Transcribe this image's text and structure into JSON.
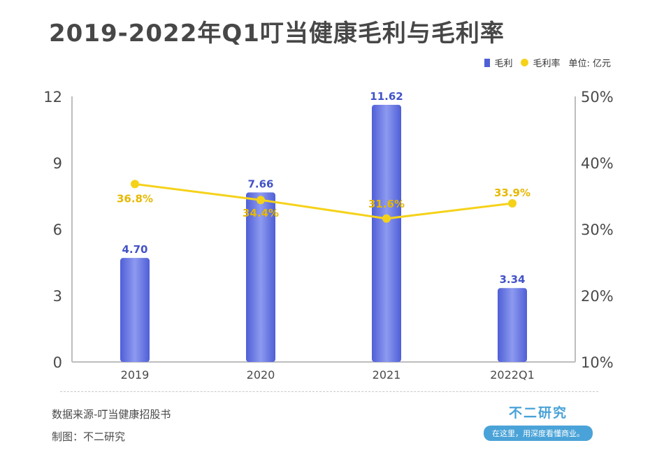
{
  "title": "2019-2022年Q1叮当健康毛利与毛利率",
  "legend": {
    "bar_label": "毛利",
    "line_label": "毛利率",
    "unit": "单位: 亿元"
  },
  "colors": {
    "bar": "#4f5fd6",
    "line": "#f5d21a",
    "bar_label": "#4352c8",
    "line_label": "#e6b800",
    "axis": "#bdbdbd",
    "text": "#4a4a4a"
  },
  "footer": {
    "source": "数据来源-叮当健康招股书",
    "credit": "制图：不二研究"
  },
  "brand": {
    "name": "不二研究",
    "slogan": "在这里，用深度看懂商业。"
  },
  "chart_data": {
    "type": "bar",
    "categories": [
      "2019",
      "2020",
      "2021",
      "2022Q1"
    ],
    "series": [
      {
        "name": "毛利",
        "type": "bar",
        "axis": "left",
        "values": [
          4.7,
          7.66,
          11.62,
          3.34
        ],
        "labels": [
          "4.70",
          "7.66",
          "11.62",
          "3.34"
        ]
      },
      {
        "name": "毛利率",
        "type": "line",
        "axis": "right",
        "values": [
          36.8,
          34.4,
          31.6,
          33.9
        ],
        "labels": [
          "36.8%",
          "34.4%",
          "31.6%",
          "33.9%"
        ]
      }
    ],
    "y_left": {
      "min": 0,
      "max": 12,
      "ticks": [
        "0",
        "3",
        "6",
        "9",
        "12"
      ]
    },
    "y_right": {
      "min": 10,
      "max": 50,
      "ticks": [
        "10%",
        "20%",
        "30%",
        "40%",
        "50%"
      ]
    },
    "grid": false,
    "legend_position": "top-right"
  }
}
